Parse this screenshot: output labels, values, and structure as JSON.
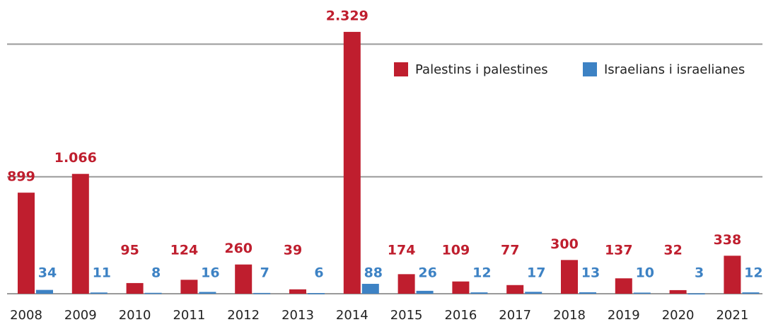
{
  "chart_data": {
    "type": "bar",
    "categories": [
      "2008",
      "2009",
      "2010",
      "2011",
      "2012",
      "2013",
      "2014",
      "2015",
      "2016",
      "2017",
      "2018",
      "2019",
      "2020",
      "2021"
    ],
    "series": [
      {
        "name": "Palestins i palestines",
        "color": "#bf1e2e",
        "values": [
          899,
          1066,
          95,
          124,
          260,
          39,
          2329,
          174,
          109,
          77,
          300,
          137,
          32,
          338
        ],
        "value_labels": [
          "899",
          "1.066",
          "95",
          "124",
          "260",
          "39",
          "2.329",
          "174",
          "109",
          "77",
          "300",
          "137",
          "32",
          "338"
        ]
      },
      {
        "name": "Israelians i israelianes",
        "color": "#3d82c4",
        "values": [
          34,
          11,
          8,
          16,
          7,
          6,
          88,
          26,
          12,
          17,
          13,
          10,
          3,
          12
        ]
      }
    ],
    "ylim": [
      0,
      2600
    ],
    "yticks": [
      0,
      1040,
      2220
    ],
    "grid": true
  }
}
